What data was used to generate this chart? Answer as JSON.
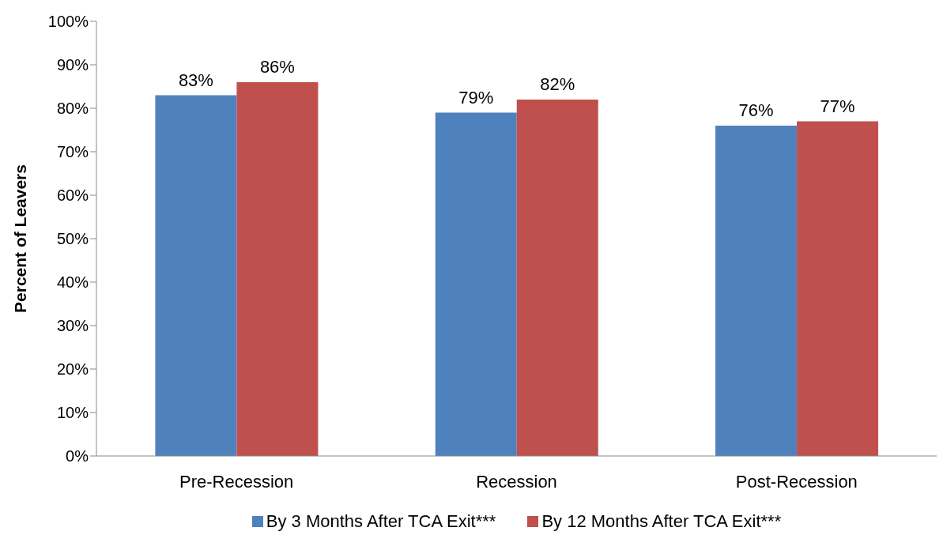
{
  "chart_data": {
    "type": "bar",
    "ylabel": "Percent of Leavers",
    "categories": [
      "Pre-Recession",
      "Recession",
      "Post-Recession"
    ],
    "series": [
      {
        "name": "By 3 Months After TCA Exit***",
        "color": "#4f81bd",
        "values": [
          83,
          79,
          76
        ],
        "value_labels": [
          "83%",
          "79%",
          "76%"
        ]
      },
      {
        "name": "By 12 Months After TCA Exit***",
        "color": "#c0504d",
        "values": [
          86,
          82,
          77
        ],
        "value_labels": [
          "86%",
          "82%",
          "77%"
        ]
      }
    ],
    "ylim": [
      0,
      100
    ],
    "yticks": [
      {
        "value": 0,
        "label": "0%"
      },
      {
        "value": 10,
        "label": "10%"
      },
      {
        "value": 20,
        "label": "20%"
      },
      {
        "value": 30,
        "label": "30%"
      },
      {
        "value": 40,
        "label": "40%"
      },
      {
        "value": 50,
        "label": "50%"
      },
      {
        "value": 60,
        "label": "60%"
      },
      {
        "value": 70,
        "label": "70%"
      },
      {
        "value": 80,
        "label": "80%"
      },
      {
        "value": 90,
        "label": "90%"
      },
      {
        "value": 100,
        "label": "100%"
      }
    ],
    "grid": false,
    "legend": "bottom"
  }
}
